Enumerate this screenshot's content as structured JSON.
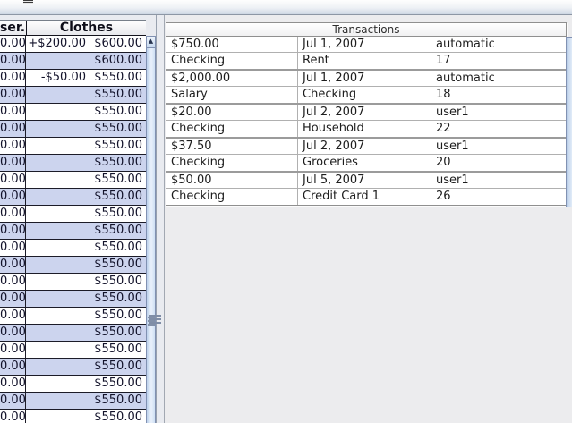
{
  "left_table": {
    "columns": [
      {
        "label": "ser..."
      },
      {
        "label": "Clothes"
      }
    ],
    "rows": [
      {
        "user": "0.00",
        "change": "+$200.00",
        "balance": "$600.00"
      },
      {
        "user": "0.00",
        "change": "",
        "balance": "$600.00"
      },
      {
        "user": "0.00",
        "change": "-$50.00",
        "balance": "$550.00"
      },
      {
        "user": "0.00",
        "change": "",
        "balance": "$550.00"
      },
      {
        "user": "0.00",
        "change": "",
        "balance": "$550.00"
      },
      {
        "user": "0.00",
        "change": "",
        "balance": "$550.00"
      },
      {
        "user": "0.00",
        "change": "",
        "balance": "$550.00"
      },
      {
        "user": "0.00",
        "change": "",
        "balance": "$550.00"
      },
      {
        "user": "0.00",
        "change": "",
        "balance": "$550.00"
      },
      {
        "user": "0.00",
        "change": "",
        "balance": "$550.00"
      },
      {
        "user": "0.00",
        "change": "",
        "balance": "$550.00"
      },
      {
        "user": "0.00",
        "change": "",
        "balance": "$550.00"
      },
      {
        "user": "0.00",
        "change": "",
        "balance": "$550.00"
      },
      {
        "user": "0.00",
        "change": "",
        "balance": "$550.00"
      },
      {
        "user": "0.00",
        "change": "",
        "balance": "$550.00"
      },
      {
        "user": "0.00",
        "change": "",
        "balance": "$550.00"
      },
      {
        "user": "0.00",
        "change": "",
        "balance": "$550.00"
      },
      {
        "user": "0.00",
        "change": "",
        "balance": "$550.00"
      },
      {
        "user": "0.00",
        "change": "",
        "balance": "$550.00"
      },
      {
        "user": "0.00",
        "change": "",
        "balance": "$550.00"
      },
      {
        "user": "0.00",
        "change": "",
        "balance": "$550.00"
      },
      {
        "user": "0.00",
        "change": "",
        "balance": "$550.00"
      },
      {
        "user": "0.00",
        "change": "",
        "balance": "$550.00"
      }
    ]
  },
  "transactions": {
    "title": "Transactions",
    "groups": [
      {
        "amount": "$750.00",
        "date": "Jul 1, 2007",
        "entered_by": "automatic",
        "account": "Checking",
        "category": "Rent",
        "number": "17"
      },
      {
        "amount": "$2,000.00",
        "date": "Jul 1, 2007",
        "entered_by": "automatic",
        "account": "Salary",
        "category": "Checking",
        "number": "18"
      },
      {
        "amount": "$20.00",
        "date": "Jul 2, 2007",
        "entered_by": "user1",
        "account": "Checking",
        "category": "Household",
        "number": "22"
      },
      {
        "amount": "$37.50",
        "date": "Jul 2, 2007",
        "entered_by": "user1",
        "account": "Checking",
        "category": "Groceries",
        "number": "20"
      },
      {
        "amount": "$50.00",
        "date": "Jul 5, 2007",
        "entered_by": "user1",
        "account": "Checking",
        "category": "Credit Card 1",
        "number": "26"
      }
    ]
  },
  "icons": {
    "scroll_up": "▲"
  },
  "colors": {
    "left_row_alt": "#ccd4ee",
    "left_grid_line": "#1c1c28",
    "scrollbar_thumb": "#cfe0f3",
    "scrollbar_border": "#8191b2",
    "transactions_grid": "#b0b0b0",
    "transactions_group_border": "#9b9b9b",
    "panel_background": "#ececee"
  }
}
